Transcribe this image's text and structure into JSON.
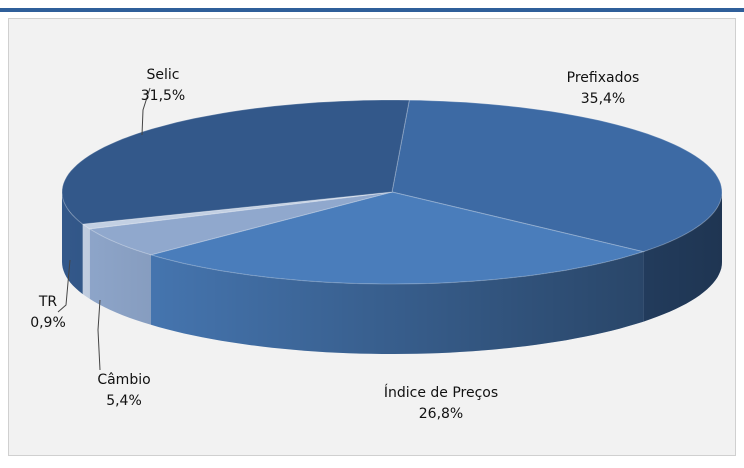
{
  "chart_data": {
    "type": "pie",
    "categories": [
      "Prefixados",
      "Índice de Preços",
      "Câmbio",
      "TR",
      "Selic"
    ],
    "values": [
      35.4,
      26.8,
      5.4,
      0.9,
      31.5
    ],
    "value_labels": [
      "35,4%",
      "26,8%",
      "5,4%",
      "0,9%",
      "31,5%"
    ],
    "colors": [
      "#3d6aa4",
      "#4a7dbb",
      "#90a8cd",
      "#c3d0e3",
      "#33588a"
    ]
  }
}
